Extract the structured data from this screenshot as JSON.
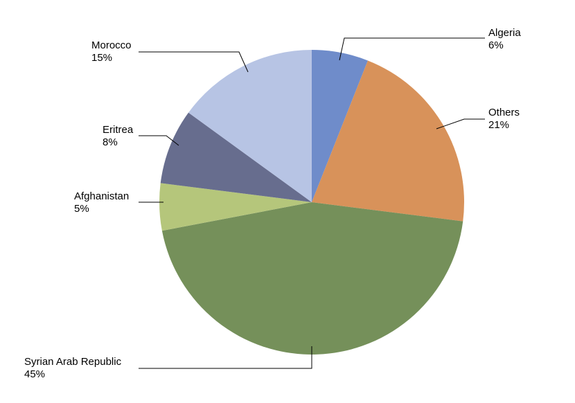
{
  "chart_data": {
    "type": "pie",
    "categories": [
      "Algeria",
      "Others",
      "Syrian Arab Republic",
      "Afghanistan",
      "Eritrea",
      "Morocco"
    ],
    "values": [
      6,
      21,
      45,
      5,
      8,
      15
    ],
    "value_labels": [
      "6%",
      "21%",
      "45%",
      "5%",
      "8%",
      "15%"
    ],
    "colors": [
      "#6f8cca",
      "#d8925a",
      "#75905a",
      "#b5c67b",
      "#676d8e",
      "#b7c4e4"
    ]
  }
}
